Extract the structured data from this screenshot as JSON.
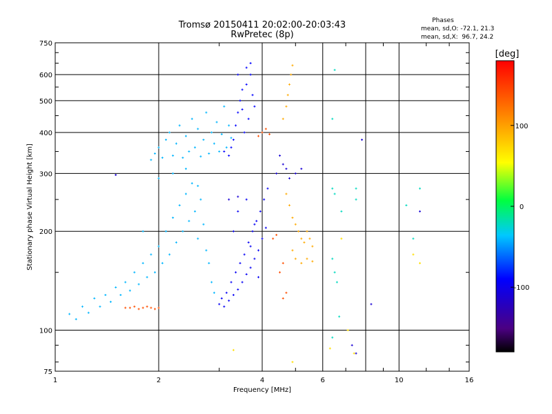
{
  "chart_data": {
    "type": "scatter",
    "title": "Tromsø 20150411 20:02:00-20:03:43",
    "subtitle": "RwPretec (8p)",
    "xlabel": "Frequency [MHz]",
    "ylabel": "Stationary phase Virtual Height [km]",
    "x_scale": "log",
    "y_scale": "log",
    "xlim": [
      1,
      16
    ],
    "ylim": [
      75,
      750
    ],
    "x_ticks": [
      1,
      2,
      4,
      6,
      10,
      16
    ],
    "y_ticks": [
      75,
      100,
      200,
      300,
      400,
      500,
      600,
      750
    ],
    "grid": true,
    "phase_stats": {
      "header": "Phases",
      "line_o": "mean, sd,O: -72.1, 21.3",
      "line_x": "mean, sd,X:  96.7, 24.2"
    },
    "colorbar": {
      "label": "[deg]",
      "ticks": [
        "100",
        "0",
        "-100"
      ],
      "tick_values": [
        100,
        0,
        -100
      ],
      "range": [
        -180,
        180
      ]
    },
    "series": [
      {
        "phase": -40,
        "points": [
          [
            1.9,
            330
          ],
          [
            1.95,
            345
          ],
          [
            2.0,
            360
          ],
          [
            2.05,
            335
          ],
          [
            2.1,
            380
          ],
          [
            2.15,
            400
          ],
          [
            2.2,
            340
          ],
          [
            2.25,
            370
          ],
          [
            2.3,
            420
          ],
          [
            2.35,
            335
          ],
          [
            2.4,
            390
          ],
          [
            2.45,
            350
          ],
          [
            2.5,
            440
          ],
          [
            2.55,
            360
          ],
          [
            2.6,
            410
          ],
          [
            2.65,
            338
          ],
          [
            2.7,
            380
          ],
          [
            2.75,
            460
          ],
          [
            2.8,
            345
          ],
          [
            2.85,
            400
          ],
          [
            2.9,
            370
          ],
          [
            2.95,
            430
          ],
          [
            3.0,
            350
          ],
          [
            3.05,
            395
          ],
          [
            3.1,
            480
          ],
          [
            3.15,
            360
          ],
          [
            3.2,
            420
          ],
          [
            3.25,
            385
          ]
        ]
      },
      {
        "phase": -90,
        "points": [
          [
            3.3,
            380
          ],
          [
            3.35,
            420
          ],
          [
            3.4,
            460
          ],
          [
            3.45,
            500
          ],
          [
            3.5,
            540
          ],
          [
            3.55,
            400
          ],
          [
            3.6,
            560
          ],
          [
            3.65,
            440
          ],
          [
            3.7,
            600
          ],
          [
            3.75,
            520
          ],
          [
            3.8,
            480
          ],
          [
            3.2,
            340
          ],
          [
            3.25,
            360
          ],
          [
            3.4,
            600
          ],
          [
            3.6,
            630
          ],
          [
            3.7,
            650
          ],
          [
            3.1,
            350
          ],
          [
            3.5,
            470
          ]
        ]
      },
      {
        "phase": -40,
        "points": [
          [
            1.1,
            112
          ],
          [
            1.15,
            108
          ],
          [
            1.2,
            118
          ],
          [
            1.25,
            113
          ],
          [
            1.3,
            125
          ],
          [
            1.35,
            118
          ],
          [
            1.4,
            128
          ],
          [
            1.45,
            122
          ],
          [
            1.5,
            135
          ],
          [
            1.55,
            128
          ],
          [
            1.6,
            140
          ],
          [
            1.65,
            132
          ],
          [
            1.7,
            150
          ],
          [
            1.75,
            138
          ],
          [
            1.8,
            160
          ],
          [
            1.85,
            145
          ],
          [
            1.9,
            170
          ],
          [
            1.95,
            150
          ],
          [
            2.0,
            180
          ],
          [
            2.05,
            160
          ],
          [
            2.1,
            200
          ],
          [
            2.15,
            170
          ],
          [
            2.2,
            220
          ],
          [
            2.25,
            185
          ],
          [
            2.3,
            240
          ],
          [
            2.35,
            200
          ],
          [
            2.4,
            260
          ],
          [
            2.45,
            215
          ],
          [
            2.5,
            280
          ],
          [
            2.55,
            230
          ],
          [
            2.6,
            190
          ],
          [
            2.65,
            250
          ],
          [
            2.7,
            210
          ],
          [
            2.75,
            175
          ],
          [
            2.8,
            160
          ],
          [
            2.85,
            140
          ],
          [
            2.9,
            130
          ],
          [
            2.0,
            290
          ],
          [
            2.2,
            300
          ],
          [
            2.4,
            310
          ],
          [
            1.8,
            200
          ],
          [
            2.6,
            275
          ]
        ]
      },
      {
        "phase": -95,
        "points": [
          [
            3.0,
            120
          ],
          [
            3.05,
            125
          ],
          [
            3.1,
            118
          ],
          [
            3.15,
            130
          ],
          [
            3.2,
            123
          ],
          [
            3.25,
            140
          ],
          [
            3.3,
            128
          ],
          [
            3.35,
            150
          ],
          [
            3.4,
            133
          ],
          [
            3.45,
            160
          ],
          [
            3.5,
            140
          ],
          [
            3.55,
            170
          ],
          [
            3.6,
            148
          ],
          [
            3.65,
            185
          ],
          [
            3.7,
            155
          ],
          [
            3.75,
            200
          ],
          [
            3.8,
            165
          ],
          [
            3.85,
            215
          ],
          [
            3.9,
            175
          ],
          [
            3.95,
            230
          ],
          [
            4.0,
            190
          ],
          [
            4.05,
            250
          ],
          [
            4.1,
            205
          ],
          [
            4.15,
            270
          ],
          [
            3.4,
            230
          ],
          [
            3.6,
            250
          ],
          [
            3.8,
            210
          ],
          [
            3.7,
            180
          ],
          [
            3.3,
            200
          ],
          [
            3.9,
            145
          ]
        ]
      },
      {
        "phase": 95,
        "points": [
          [
            4.7,
            260
          ],
          [
            4.8,
            240
          ],
          [
            4.9,
            220
          ],
          [
            5.0,
            210
          ],
          [
            5.1,
            200
          ],
          [
            5.2,
            190
          ],
          [
            5.3,
            185
          ],
          [
            5.4,
            200
          ],
          [
            5.5,
            190
          ],
          [
            5.6,
            180
          ],
          [
            4.9,
            175
          ],
          [
            5.0,
            165
          ],
          [
            5.2,
            160
          ],
          [
            5.4,
            165
          ],
          [
            5.6,
            162
          ],
          [
            4.8,
            560
          ],
          [
            4.85,
            600
          ],
          [
            4.9,
            640
          ],
          [
            4.75,
            520
          ],
          [
            4.7,
            480
          ],
          [
            4.6,
            440
          ]
        ]
      },
      {
        "phase": 140,
        "points": [
          [
            1.6,
            117
          ],
          [
            1.65,
            117
          ],
          [
            1.7,
            118
          ],
          [
            1.75,
            116
          ],
          [
            1.8,
            117
          ],
          [
            1.85,
            118
          ],
          [
            1.9,
            117
          ],
          [
            1.95,
            116
          ],
          [
            2.0,
            117
          ],
          [
            3.9,
            390
          ],
          [
            4.0,
            400
          ],
          [
            4.1,
            410
          ],
          [
            4.2,
            395
          ],
          [
            4.5,
            150
          ],
          [
            4.6,
            160
          ],
          [
            4.4,
            195
          ],
          [
            4.3,
            190
          ],
          [
            4.6,
            125
          ],
          [
            4.7,
            130
          ]
        ]
      },
      {
        "phase": -20,
        "points": [
          [
            6.4,
            270
          ],
          [
            6.5,
            260
          ],
          [
            6.4,
            165
          ],
          [
            6.5,
            150
          ],
          [
            6.6,
            140
          ],
          [
            6.8,
            230
          ],
          [
            6.4,
            440
          ],
          [
            6.5,
            620
          ],
          [
            7.5,
            270
          ],
          [
            7.5,
            250
          ],
          [
            11.5,
            270
          ],
          [
            11.0,
            190
          ],
          [
            10.5,
            240
          ],
          [
            6.4,
            95
          ],
          [
            6.7,
            110
          ]
        ]
      },
      {
        "phase": -110,
        "points": [
          [
            4.5,
            340
          ],
          [
            4.6,
            320
          ],
          [
            4.7,
            310
          ],
          [
            4.4,
            300
          ],
          [
            4.8,
            290
          ],
          [
            5.0,
            300
          ],
          [
            5.2,
            310
          ],
          [
            7.3,
            90
          ],
          [
            7.5,
            85
          ],
          [
            7.8,
            380
          ],
          [
            8.3,
            120
          ],
          [
            11.5,
            230
          ],
          [
            3.2,
            250
          ],
          [
            3.4,
            255
          ],
          [
            1.5,
            297
          ]
        ]
      },
      {
        "phase": 70,
        "points": [
          [
            3.3,
            87
          ],
          [
            4.9,
            80
          ],
          [
            6.3,
            88
          ],
          [
            6.8,
            190
          ],
          [
            7.1,
            100
          ],
          [
            11.0,
            170
          ],
          [
            11.5,
            160
          ],
          [
            7.4,
            85
          ]
        ]
      }
    ]
  }
}
